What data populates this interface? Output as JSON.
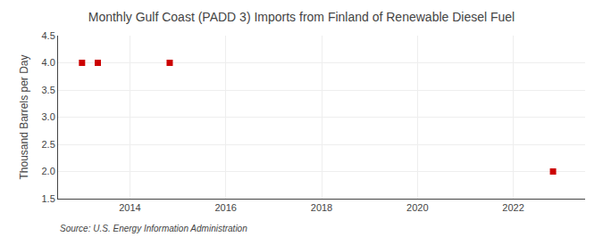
{
  "chart_data": {
    "type": "scatter",
    "title": "Monthly Gulf Coast (PADD 3) Imports from Finland of Renewable Diesel Fuel",
    "y_label": "Thousand Barrels per Day",
    "annotations": [
      "Source: U.S. Energy Information Administration"
    ],
    "x": [
      2013.0,
      2013.33,
      2014.83,
      2022.83
    ],
    "values": [
      4.0,
      4.0,
      4.0,
      2.0
    ],
    "color": "#cc0000",
    "marker": "square",
    "xlim": [
      2012.5,
      2023.5
    ],
    "xticks": [
      2014,
      2016,
      2018,
      2020,
      2022
    ],
    "ylim": [
      1.5,
      4.5
    ],
    "yticks": [
      1.5,
      {
        "value": 2.0,
        "label": "2.0"
      },
      2.5,
      {
        "value": 3.0,
        "label": "3.0"
      },
      3.5,
      {
        "value": 4.0,
        "label": "4.0"
      },
      4.5
    ],
    "grid": true
  }
}
